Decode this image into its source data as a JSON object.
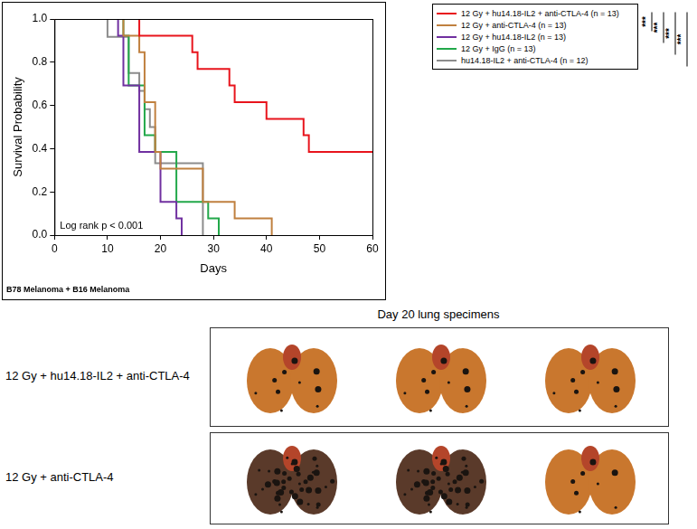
{
  "chart_data": {
    "type": "line",
    "line_style": "step",
    "grid": false,
    "legend": "right",
    "subtitle": "B78 Melanoma + B16 Melanoma",
    "annotation": "Log rank p < 0.001",
    "significance": [
      "***",
      "***",
      "***",
      "***"
    ],
    "x_label": "Days",
    "y_label": "Survival Probability",
    "xlim": [
      0,
      60
    ],
    "xticks": [
      0,
      10,
      20,
      30,
      40,
      50,
      60
    ],
    "ylim": [
      0,
      1
    ],
    "yticks": [
      {
        "value": 0,
        "label": "0.0"
      },
      {
        "value": 0.2,
        "label": "0.2"
      },
      {
        "value": 0.4,
        "label": "0.4"
      },
      {
        "value": 0.6,
        "label": "0.6"
      },
      {
        "value": 0.8,
        "label": "0.8"
      },
      {
        "value": 1,
        "label": "1.0"
      }
    ],
    "series": [
      {
        "name": "12 Gy + hu14.18-IL2 + anti-CTLA-4 (n = 13)",
        "color": "#e8141c",
        "x": [
          0,
          16,
          26,
          27,
          33,
          34,
          40,
          47,
          48,
          60
        ],
        "values": [
          1,
          0.923,
          0.846,
          0.769,
          0.692,
          0.615,
          0.538,
          0.462,
          0.385,
          0.385
        ]
      },
      {
        "name": "12 Gy + anti-CTLA-4 (n = 13)",
        "color": "#c0803f",
        "x": [
          0,
          13,
          16,
          17,
          19,
          20,
          28,
          34,
          41
        ],
        "values": [
          1,
          0.923,
          0.846,
          0.615,
          0.385,
          0.308,
          0.154,
          0.077,
          0
        ]
      },
      {
        "name": "12 Gy + hu14.18-IL2 (n = 13)",
        "color": "#7030a0",
        "x": [
          0,
          12,
          13,
          16,
          20,
          23,
          24
        ],
        "values": [
          1,
          0.923,
          0.692,
          0.385,
          0.154,
          0.077,
          0
        ]
      },
      {
        "name": "12 Gy + IgG (n = 13)",
        "color": "#22a84a",
        "x": [
          0,
          13,
          14,
          17,
          19,
          23,
          29,
          31
        ],
        "values": [
          1,
          0.923,
          0.692,
          0.462,
          0.385,
          0.154,
          0.077,
          0
        ]
      },
      {
        "name": "hu14.18-IL2 + anti-CTLA-4 (n = 12)",
        "color": "#8c8c8c",
        "x": [
          0,
          10,
          14,
          16,
          17,
          18,
          19,
          28
        ],
        "values": [
          1,
          0.917,
          0.75,
          0.667,
          0.583,
          0.5,
          0.333,
          0
        ]
      }
    ]
  },
  "specimens": {
    "title": "Day 20 lung specimens",
    "rows": [
      "12 Gy + hu14.18-IL2 + anti-CTLA-4",
      "12 Gy + anti-CTLA-4"
    ]
  }
}
